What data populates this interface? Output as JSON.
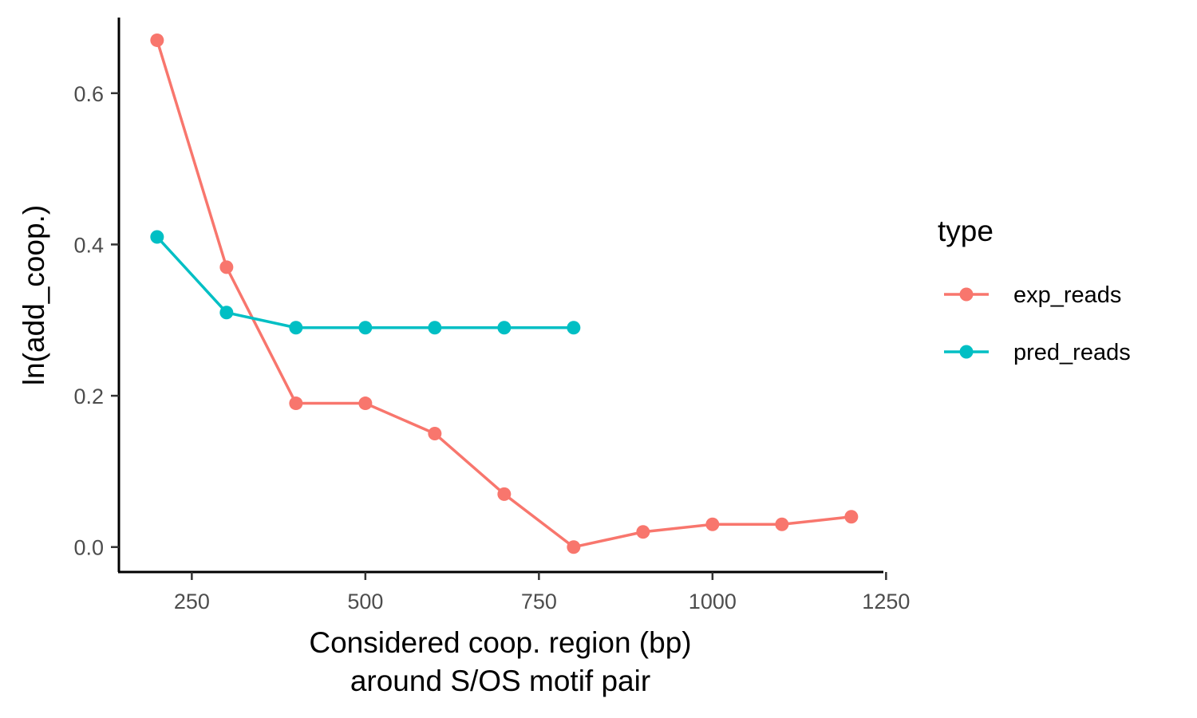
{
  "chart_data": {
    "type": "line",
    "xlabel_line1": "Considered coop. region (bp)",
    "xlabel_line2": "around S/OS motif pair",
    "ylabel": "ln(add_coop.)",
    "xlim": [
      145,
      1245
    ],
    "ylim": [
      -0.033,
      0.7
    ],
    "x_ticks": [
      250,
      500,
      750,
      1000,
      1250
    ],
    "x_tick_labels": [
      "250",
      "500",
      "750",
      "1000",
      "1250"
    ],
    "y_ticks": [
      0.0,
      0.2,
      0.4,
      0.6
    ],
    "y_tick_labels": [
      "0.0",
      "0.2",
      "0.4",
      "0.6"
    ],
    "grid": false,
    "legend_position": "right",
    "legend_title": "type",
    "series": [
      {
        "name": "exp_reads",
        "color": "#F8766D",
        "x": [
          200,
          300,
          400,
          500,
          600,
          700,
          800,
          900,
          1000,
          1100,
          1200
        ],
        "y": [
          0.67,
          0.37,
          0.19,
          0.19,
          0.15,
          0.07,
          0.0,
          0.02,
          0.03,
          0.03,
          0.04
        ]
      },
      {
        "name": "pred_reads",
        "color": "#00BFC4",
        "x": [
          200,
          300,
          400,
          500,
          600,
          700,
          800
        ],
        "y": [
          0.41,
          0.31,
          0.29,
          0.29,
          0.29,
          0.29,
          0.29
        ]
      }
    ]
  }
}
